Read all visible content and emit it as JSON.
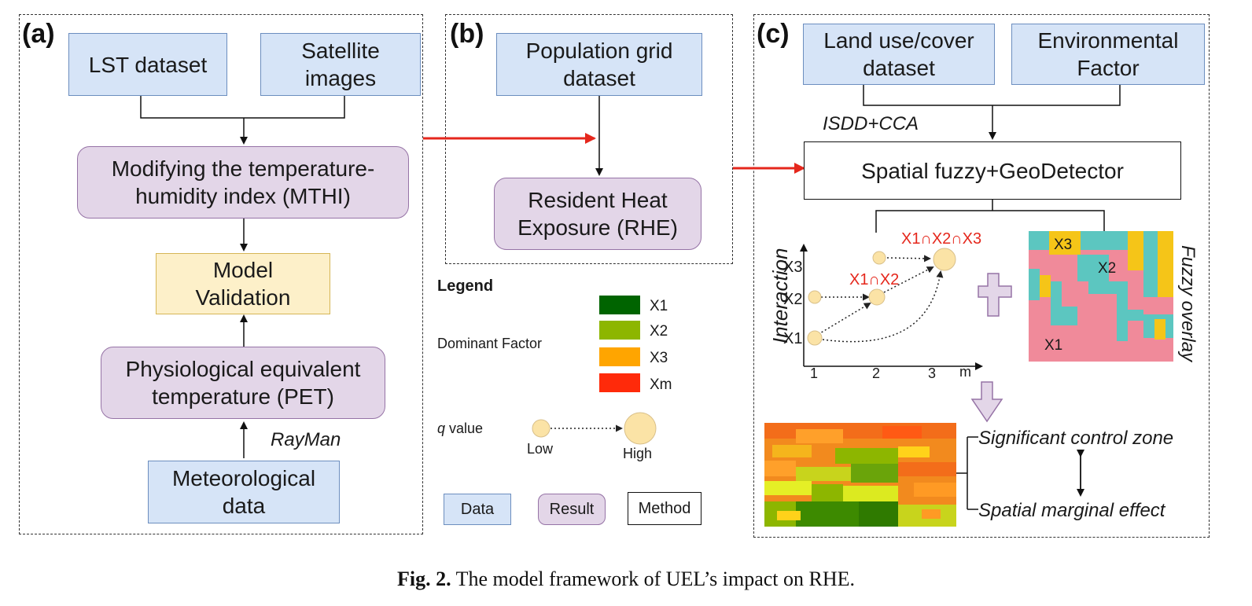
{
  "panels": {
    "a": {
      "label": "(a)",
      "lst": "LST dataset",
      "satellite": "Satellite\nimages",
      "mthi": "Modifying the temperature-\nhumidity index (MTHI)",
      "validation": "Model\nValidation",
      "pet": "Physiological equivalent\ntemperature (PET)",
      "rayman": "RayMan",
      "meteo": "Meteorological\ndata"
    },
    "b": {
      "label": "(b)",
      "population": "Population grid\ndataset",
      "rhe": "Resident Heat\nExposure (RHE)"
    },
    "c": {
      "label": "(c)",
      "landuse": "Land use/cover\ndataset",
      "env": "Environmental\nFactor",
      "isdd": "ISDD+CCA",
      "spatial": "Spatial fuzzy+GeoDetector",
      "interaction_axis": "Interaction",
      "y_ticks": [
        "X3",
        "X2",
        "X1"
      ],
      "x_ticks": [
        "1",
        "2",
        "3",
        "m"
      ],
      "x1x2": "X1∩X2",
      "x1x2x3": "X1∩X2∩X3",
      "fuzzy_overlay": "Fuzzy overlay",
      "grid_labels": [
        "X3",
        "X2",
        "X1"
      ],
      "significant": "Significant control zone",
      "marginal": "Spatial marginal effect"
    }
  },
  "legend": {
    "title": "Legend",
    "dominant_factor": "Dominant Factor",
    "factors": [
      {
        "name": "X1",
        "color": "#006400"
      },
      {
        "name": "X2",
        "color": "#8db600"
      },
      {
        "name": "X3",
        "color": "#ffa500"
      },
      {
        "name": "Xm",
        "color": "#ff2a0a"
      }
    ],
    "q_value": "q value",
    "q_value_italic": "q",
    "q_value_rest": " value",
    "low": "Low",
    "high": "High",
    "data": "Data",
    "result": "Result",
    "method": "Method"
  },
  "caption": {
    "prefix": "Fig. 2.",
    "text": " The model framework of UEL’s impact on RHE."
  },
  "colors": {
    "data_fill": "#d6e4f7",
    "result_fill": "#e3d6e8",
    "validation_fill": "#fdf0c9",
    "arrow_red": "#e5271c",
    "node_fill": "#fbe3a6"
  }
}
